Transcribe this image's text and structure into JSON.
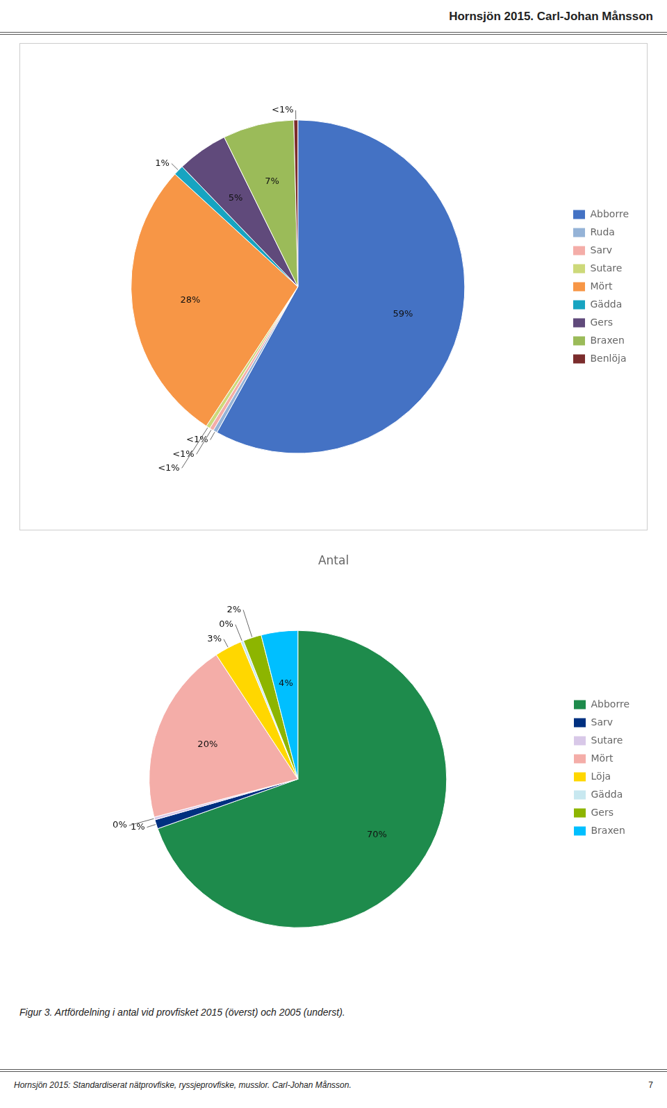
{
  "header": "Hornsjön 2015. Carl-Johan Månsson",
  "footer": "Hornsjön 2015: Standardiserat nätprovfiske, ryssjeprovfiske, musslor. Carl-Johan Månsson.",
  "page": "7",
  "caption": "Figur 3. Artfördelning i antal vid provfisket 2015 (överst) och 2005 (underst).",
  "chart_data": [
    {
      "type": "pie",
      "categories": [
        "Abborre",
        "Ruda",
        "Sarv",
        "Sutare",
        "Mört",
        "Gädda",
        "Gers",
        "Braxen",
        "Benlöja"
      ],
      "values": [
        59,
        0.4,
        0.4,
        0.4,
        28,
        1,
        5,
        7,
        0.4
      ],
      "value_labels": [
        "59%",
        "<1%",
        "<1%",
        "<1%",
        "28%",
        "1%",
        "5%",
        "7%",
        "<1%"
      ],
      "colors": [
        "#4472C4",
        "#95B3D7",
        "#F4ADA8",
        "#CDD97A",
        "#F79646",
        "#17A4C1",
        "#604A7B",
        "#9BBB59",
        "#7B2C2C"
      ],
      "data_labels": true,
      "legend": "right"
    },
    {
      "type": "pie",
      "title": "Antal",
      "categories": [
        "Abborre",
        "Sarv",
        "Sutare",
        "Mört",
        "Löja",
        "Gädda",
        "Gers",
        "Braxen"
      ],
      "values": [
        70,
        1,
        0.3,
        20,
        3,
        0.3,
        2,
        4
      ],
      "value_labels": [
        "70%",
        "1%",
        "0%",
        "20%",
        "3%",
        "0%",
        "2%",
        "4%"
      ],
      "colors": [
        "#1E8B4C",
        "#003080",
        "#D8C8E8",
        "#F4ADA8",
        "#FFD700",
        "#C8E8F0",
        "#8DB500",
        "#00BFFF"
      ],
      "data_labels": true,
      "legend": "right"
    }
  ]
}
